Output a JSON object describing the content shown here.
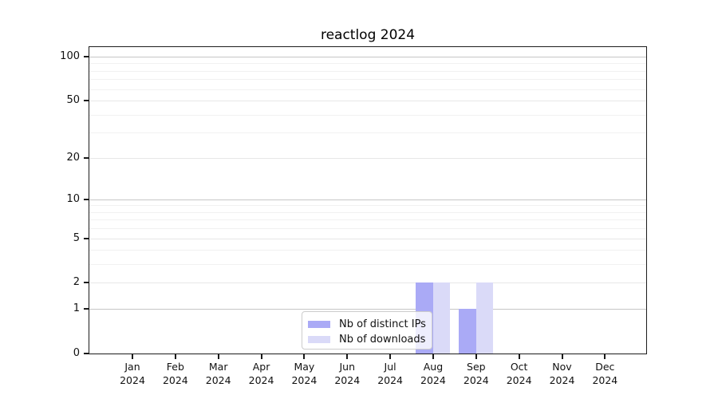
{
  "chart_data": {
    "type": "bar",
    "title": "reactlog 2024",
    "months": [
      "Jan",
      "Feb",
      "Mar",
      "Apr",
      "May",
      "Jun",
      "Jul",
      "Aug",
      "Sep",
      "Oct",
      "Nov",
      "Dec"
    ],
    "year": "2024",
    "series": [
      {
        "name": "Nb of distinct IPs",
        "color": "#aaaaf6",
        "values": [
          0,
          0,
          0,
          0,
          0,
          0,
          0,
          2,
          1,
          0,
          0,
          0
        ]
      },
      {
        "name": "Nb of downloads",
        "color": "#dadaf8",
        "values": [
          0,
          0,
          0,
          0,
          0,
          0,
          0,
          2,
          2,
          0,
          0,
          0
        ]
      }
    ],
    "y_axis": {
      "scale": "log1p",
      "ticks": [
        0,
        1,
        2,
        5,
        10,
        20,
        50,
        100
      ],
      "major_decade_ticks": [
        1,
        10,
        100
      ],
      "minor_gridlines": [
        3,
        4,
        6,
        7,
        8,
        9,
        30,
        40,
        60,
        70,
        80,
        90
      ],
      "ylim": [
        0,
        116
      ]
    },
    "grid": "on",
    "legend_position": "lower center",
    "colors": {
      "spine": "#1c1c1c",
      "grid_major": "#c6c6c6",
      "grid_minor": "#f1f1f1",
      "legend_border": "#cccccc"
    }
  }
}
